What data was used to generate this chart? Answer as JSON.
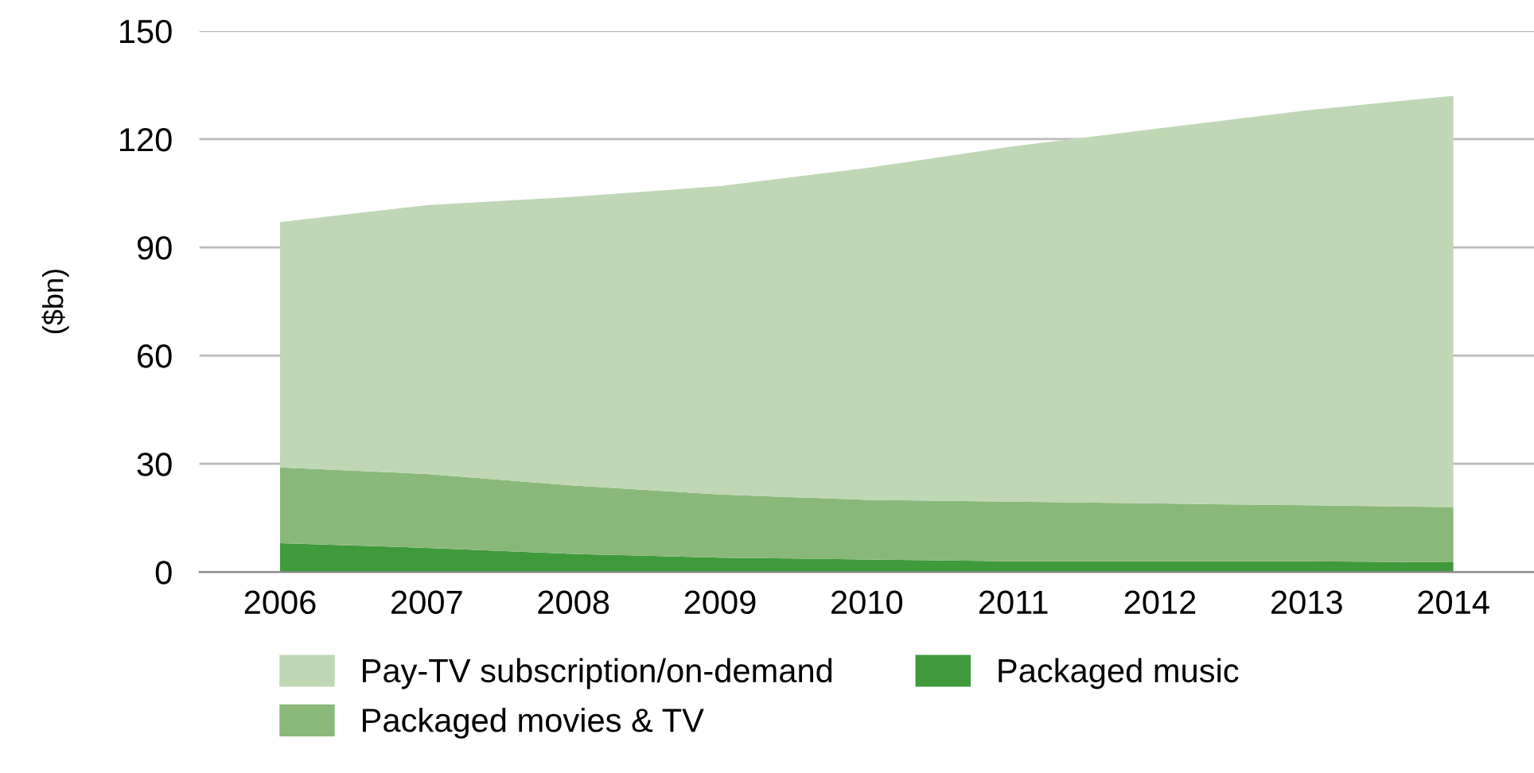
{
  "chart_data": {
    "type": "area",
    "stacked": true,
    "ylabel": "($bn)",
    "categories": [
      "2006",
      "2007",
      "2008",
      "2009",
      "2010",
      "2011",
      "2012",
      "2013",
      "2014"
    ],
    "series": [
      {
        "name": "Packaged music",
        "color": "#3f9a3c",
        "values": [
          8,
          6.7,
          5,
          4,
          3.5,
          3,
          3,
          3,
          2.7
        ]
      },
      {
        "name": "Packaged movies & TV",
        "color": "#8ab87a",
        "values": [
          21,
          20.5,
          19,
          17.5,
          16.5,
          16.5,
          16,
          15.5,
          15.3
        ]
      },
      {
        "name": "Pay-TV subscription/on-demand",
        "color": "#bfd7b5",
        "values": [
          68,
          74.5,
          80,
          85.5,
          92,
          98.5,
          104,
          109.5,
          114
        ]
      }
    ],
    "ylim": [
      0,
      150
    ],
    "yticks": [
      0,
      30,
      60,
      90,
      120,
      150
    ],
    "grid": "y",
    "legend": "bottom"
  }
}
